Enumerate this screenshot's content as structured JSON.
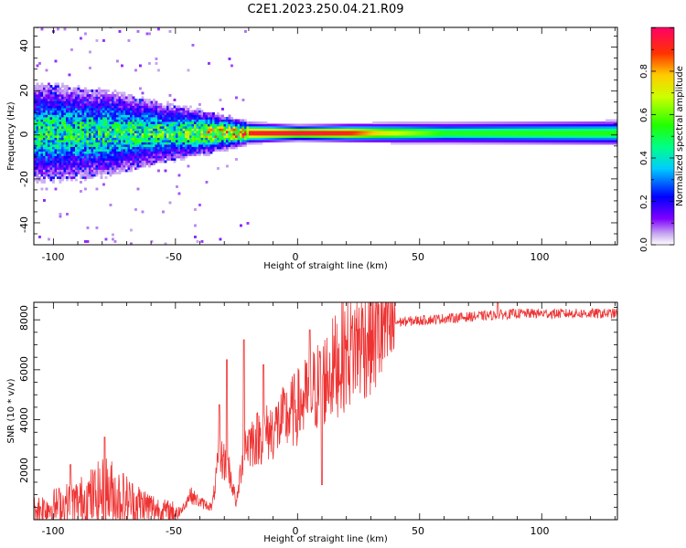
{
  "title": "C2E1.2023.250.04.21.R09",
  "chart_data": [
    {
      "type": "heatmap",
      "xlabel": "Height of straight line (km)",
      "ylabel": "Frequency (Hz)",
      "xlim": [
        -108,
        131
      ],
      "ylim": [
        -50,
        49
      ],
      "xticks": [
        "-100",
        "-50",
        "0",
        "50",
        "100"
      ],
      "yticks": [
        "-40",
        "-20",
        "0",
        "20",
        "40"
      ],
      "colorbar": {
        "label": "Normalized spectral amplitude",
        "range": [
          0,
          1
        ],
        "ticks": [
          "0.0",
          "0.2",
          "0.4",
          "0.6",
          "0.8"
        ],
        "colormap": "rainbow"
      },
      "ridge_center_hz": 0.5,
      "spread_profile": [
        {
          "x": -108,
          "spread_hz": 10
        },
        {
          "x": -80,
          "spread_hz": 9
        },
        {
          "x": -55,
          "spread_hz": 6
        },
        {
          "x": -35,
          "spread_hz": 4
        },
        {
          "x": -20,
          "spread_hz": 2
        },
        {
          "x": 0,
          "spread_hz": 1.5
        },
        {
          "x": 40,
          "spread_hz": 2
        },
        {
          "x": 131,
          "spread_hz": 2.5
        }
      ],
      "amplitude_profile": [
        {
          "x": -108,
          "amp": 0.45
        },
        {
          "x": -80,
          "amp": 0.45
        },
        {
          "x": -50,
          "amp": 0.5
        },
        {
          "x": -30,
          "amp": 0.7
        },
        {
          "x": -20,
          "amp": 0.95
        },
        {
          "x": 0,
          "amp": 1.0
        },
        {
          "x": 20,
          "amp": 0.95
        },
        {
          "x": 35,
          "amp": 0.75
        },
        {
          "x": 60,
          "amp": 0.55
        },
        {
          "x": 131,
          "amp": 0.55
        }
      ],
      "grid": false
    },
    {
      "type": "line",
      "xlabel": "Height of straight line (km)",
      "ylabel": "SNR (10 * v/v)",
      "xlim": [
        -108,
        131
      ],
      "ylim": [
        0,
        8700
      ],
      "xticks": [
        "-100",
        "-50",
        "0",
        "50",
        "100"
      ],
      "yticks": [
        "2000",
        "4000",
        "6000",
        "8000"
      ],
      "color": "#ee3333",
      "baseline": [
        {
          "x": -108,
          "y": 400
        },
        {
          "x": -90,
          "y": 700
        },
        {
          "x": -78,
          "y": 1100
        },
        {
          "x": -68,
          "y": 700
        },
        {
          "x": -55,
          "y": 350
        },
        {
          "x": -48,
          "y": 300
        },
        {
          "x": -44,
          "y": 1000
        },
        {
          "x": -40,
          "y": 700
        },
        {
          "x": -35,
          "y": 500
        },
        {
          "x": -32,
          "y": 2600
        },
        {
          "x": -28,
          "y": 2000
        },
        {
          "x": -25,
          "y": 600
        },
        {
          "x": -22,
          "y": 3000
        },
        {
          "x": -10,
          "y": 3600
        },
        {
          "x": 0,
          "y": 4500
        },
        {
          "x": 10,
          "y": 5500
        },
        {
          "x": 20,
          "y": 6700
        },
        {
          "x": 30,
          "y": 7500
        },
        {
          "x": 40,
          "y": 7900
        },
        {
          "x": 60,
          "y": 8050
        },
        {
          "x": 90,
          "y": 8250
        },
        {
          "x": 131,
          "y": 8250
        }
      ],
      "spikes": [
        {
          "x": -79,
          "y": 3300
        },
        {
          "x": -93,
          "y": 2200
        },
        {
          "x": -32,
          "y": 4600
        },
        {
          "x": -29,
          "y": 6400
        },
        {
          "x": -22,
          "y": 7200
        },
        {
          "x": -14,
          "y": 6200
        },
        {
          "x": 5,
          "y": 7600
        },
        {
          "x": 10,
          "y": 1400
        },
        {
          "x": 82,
          "y": 8700
        }
      ],
      "grid": false
    }
  ]
}
